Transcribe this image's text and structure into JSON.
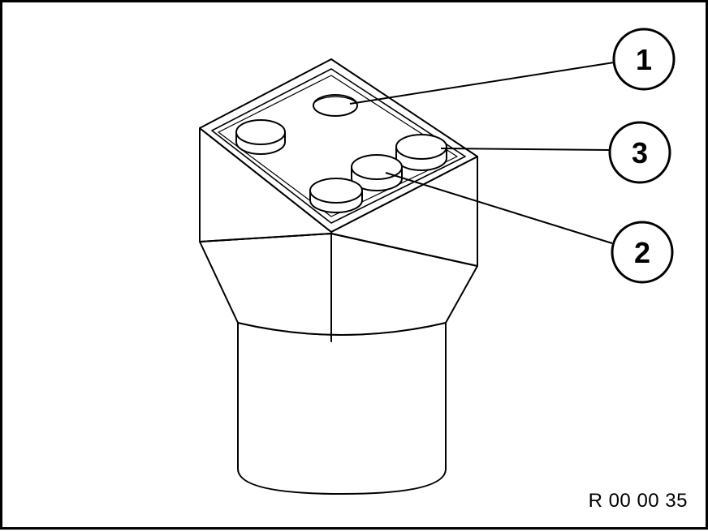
{
  "figure": {
    "reference_code": "R 00 00 35",
    "callouts": [
      {
        "id": "1",
        "label": "1"
      },
      {
        "id": "3",
        "label": "3"
      },
      {
        "id": "2",
        "label": "2"
      }
    ]
  }
}
